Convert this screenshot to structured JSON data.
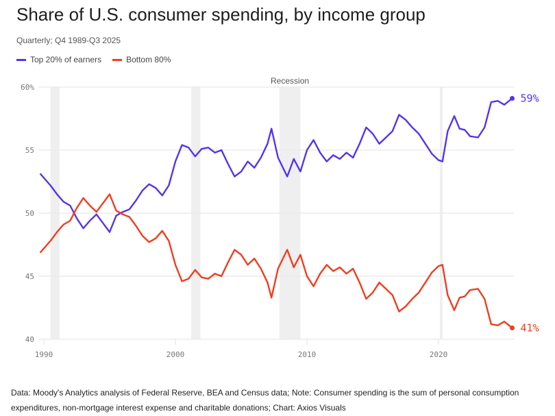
{
  "header": {
    "title": "Share of U.S. consumer spending, by income group",
    "subtitle": "Quarterly; Q4 1989-Q3 2025"
  },
  "legend": [
    {
      "label": "Top 20% of earners",
      "color": "#5533ee"
    },
    {
      "label": "Bottom 80%",
      "color": "#f23c1e"
    }
  ],
  "footer": {
    "source": "Data: Moody's Analytics analysis of Federal Reserve, BEA and Census data; Note: Consumer spending is the sum of personal consumption expenditures, non-mortgage interest expense and charitable donations; Chart: Axios Visuals"
  },
  "chart_data": {
    "type": "line",
    "title": "Share of U.S. consumer spending, by income group",
    "subtitle": "Quarterly; Q4 1989-Q3 2025",
    "xlabel": "",
    "ylabel": "",
    "xlim": [
      1989.75,
      2025.6
    ],
    "ylim": [
      40,
      60
    ],
    "x_ticks": [
      1990,
      2000,
      2010,
      2020
    ],
    "x_tick_labels": [
      "1990",
      "2000",
      "2010",
      "2020"
    ],
    "y_ticks": [
      40,
      45,
      50,
      55,
      60
    ],
    "y_tick_labels": [
      "40",
      "45",
      "50",
      "55",
      "60%"
    ],
    "grid": true,
    "legend_position": "top-left",
    "recession_label": "Recession",
    "recessions": [
      [
        1990.5,
        1991.2
      ],
      [
        2001.2,
        2001.9
      ],
      [
        2007.9,
        2009.5
      ],
      [
        2020.1,
        2020.3
      ]
    ],
    "x": [
      1989.75,
      1990.5,
      1991,
      1991.5,
      1992,
      1992.5,
      1993,
      1993.5,
      1994,
      1994.5,
      1995,
      1995.5,
      1996,
      1996.5,
      1997,
      1997.5,
      1998,
      1998.5,
      1999,
      1999.5,
      2000,
      2000.5,
      2001,
      2001.5,
      2002,
      2002.5,
      2003,
      2003.5,
      2004,
      2004.5,
      2005,
      2005.5,
      2006,
      2006.5,
      2007,
      2007.3,
      2007.8,
      2008.5,
      2009,
      2009.5,
      2010,
      2010.5,
      2011,
      2011.5,
      2012,
      2012.5,
      2013,
      2013.5,
      2014,
      2014.5,
      2015,
      2015.5,
      2016,
      2016.5,
      2017,
      2017.5,
      2018,
      2018.5,
      2019,
      2019.5,
      2020,
      2020.3,
      2020.7,
      2021.2,
      2021.6,
      2022,
      2022.4,
      2023,
      2023.5,
      2024,
      2024.5,
      2025,
      2025.6
    ],
    "series": [
      {
        "name": "Top 20% of earners",
        "color": "#5533ee",
        "end_label": "59%",
        "values": [
          53.1,
          52.2,
          51.5,
          50.9,
          50.6,
          49.6,
          48.8,
          49.4,
          49.9,
          49.2,
          48.5,
          49.8,
          50.1,
          50.3,
          51.0,
          51.8,
          52.3,
          52.0,
          51.4,
          52.2,
          54.1,
          55.4,
          55.2,
          54.5,
          55.1,
          55.2,
          54.8,
          55.0,
          53.9,
          52.9,
          53.3,
          54.1,
          53.6,
          54.4,
          55.5,
          56.7,
          54.4,
          52.9,
          54.3,
          53.3,
          55.0,
          55.8,
          54.8,
          54.1,
          54.6,
          54.3,
          54.8,
          54.4,
          55.5,
          56.8,
          56.3,
          55.5,
          56.0,
          56.5,
          57.8,
          57.4,
          56.8,
          56.3,
          55.5,
          54.7,
          54.2,
          54.1,
          56.5,
          57.7,
          56.7,
          56.6,
          56.1,
          56.0,
          56.8,
          58.8,
          58.9,
          58.6,
          59.1
        ]
      },
      {
        "name": "Bottom 80%",
        "color": "#f23c1e",
        "end_label": "41%",
        "values": [
          46.9,
          47.8,
          48.5,
          49.1,
          49.4,
          50.4,
          51.2,
          50.6,
          50.1,
          50.8,
          51.5,
          50.2,
          49.9,
          49.7,
          49.0,
          48.2,
          47.7,
          48.0,
          48.6,
          47.8,
          45.9,
          44.6,
          44.8,
          45.5,
          44.9,
          44.8,
          45.2,
          45.0,
          46.1,
          47.1,
          46.7,
          45.9,
          46.4,
          45.6,
          44.5,
          43.3,
          45.6,
          47.1,
          45.7,
          46.7,
          45.0,
          44.2,
          45.2,
          45.9,
          45.4,
          45.7,
          45.2,
          45.6,
          44.5,
          43.2,
          43.7,
          44.5,
          44.0,
          43.5,
          42.2,
          42.6,
          43.2,
          43.7,
          44.5,
          45.3,
          45.8,
          45.9,
          43.5,
          42.3,
          43.3,
          43.4,
          43.9,
          44.0,
          43.2,
          41.2,
          41.1,
          41.4,
          40.9
        ]
      }
    ]
  }
}
